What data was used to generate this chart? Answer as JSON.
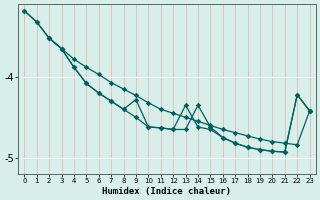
{
  "xlabel": "Humidex (Indice chaleur)",
  "bg_color": "#d8eee8",
  "grid_color_h": "#ffffff",
  "grid_color_v": "#e8c8c8",
  "line_color": "#006060",
  "xlim": [
    -0.5,
    23.5
  ],
  "ylim": [
    -5.2,
    -3.1
  ],
  "yticks": [
    -5,
    -4
  ],
  "xticks": [
    0,
    1,
    2,
    3,
    4,
    5,
    6,
    7,
    8,
    9,
    10,
    11,
    12,
    13,
    14,
    15,
    16,
    17,
    18,
    19,
    20,
    21,
    22,
    23
  ],
  "line1_x": [
    0,
    1,
    2,
    3,
    4,
    5,
    6,
    7,
    8,
    9,
    10,
    11,
    12,
    13,
    14,
    15,
    16,
    17,
    18,
    19,
    20,
    21,
    22,
    23
  ],
  "line1_y": [
    -3.18,
    -3.32,
    -3.52,
    -3.65,
    -3.78,
    -3.88,
    -3.97,
    -4.07,
    -4.15,
    -4.23,
    -4.32,
    -4.4,
    -4.45,
    -4.5,
    -4.55,
    -4.6,
    -4.65,
    -4.69,
    -4.73,
    -4.77,
    -4.8,
    -4.82,
    -4.84,
    -4.42
  ],
  "line2_x": [
    0,
    1,
    2,
    3,
    4,
    5,
    6,
    7,
    8,
    9,
    10,
    11,
    12,
    13,
    14,
    15,
    16,
    17,
    18,
    19,
    20,
    21,
    22,
    23
  ],
  "line2_y": [
    -3.18,
    -3.32,
    -3.52,
    -3.65,
    -3.88,
    -4.08,
    -4.2,
    -4.3,
    -4.4,
    -4.28,
    -4.62,
    -4.63,
    -4.65,
    -4.35,
    -4.62,
    -4.65,
    -4.75,
    -4.82,
    -4.87,
    -4.9,
    -4.92,
    -4.93,
    -4.22,
    -4.42
  ],
  "line3_x": [
    2,
    3,
    4,
    5,
    6,
    7,
    8,
    9,
    10,
    11,
    12,
    13,
    14,
    15,
    16,
    17,
    18,
    19,
    20,
    21,
    22,
    23
  ],
  "line3_y": [
    -3.52,
    -3.65,
    -3.88,
    -4.08,
    -4.2,
    -4.3,
    -4.4,
    -4.5,
    -4.62,
    -4.63,
    -4.65,
    -4.65,
    -4.35,
    -4.62,
    -4.75,
    -4.82,
    -4.87,
    -4.9,
    -4.92,
    -4.93,
    -4.22,
    -4.42
  ]
}
